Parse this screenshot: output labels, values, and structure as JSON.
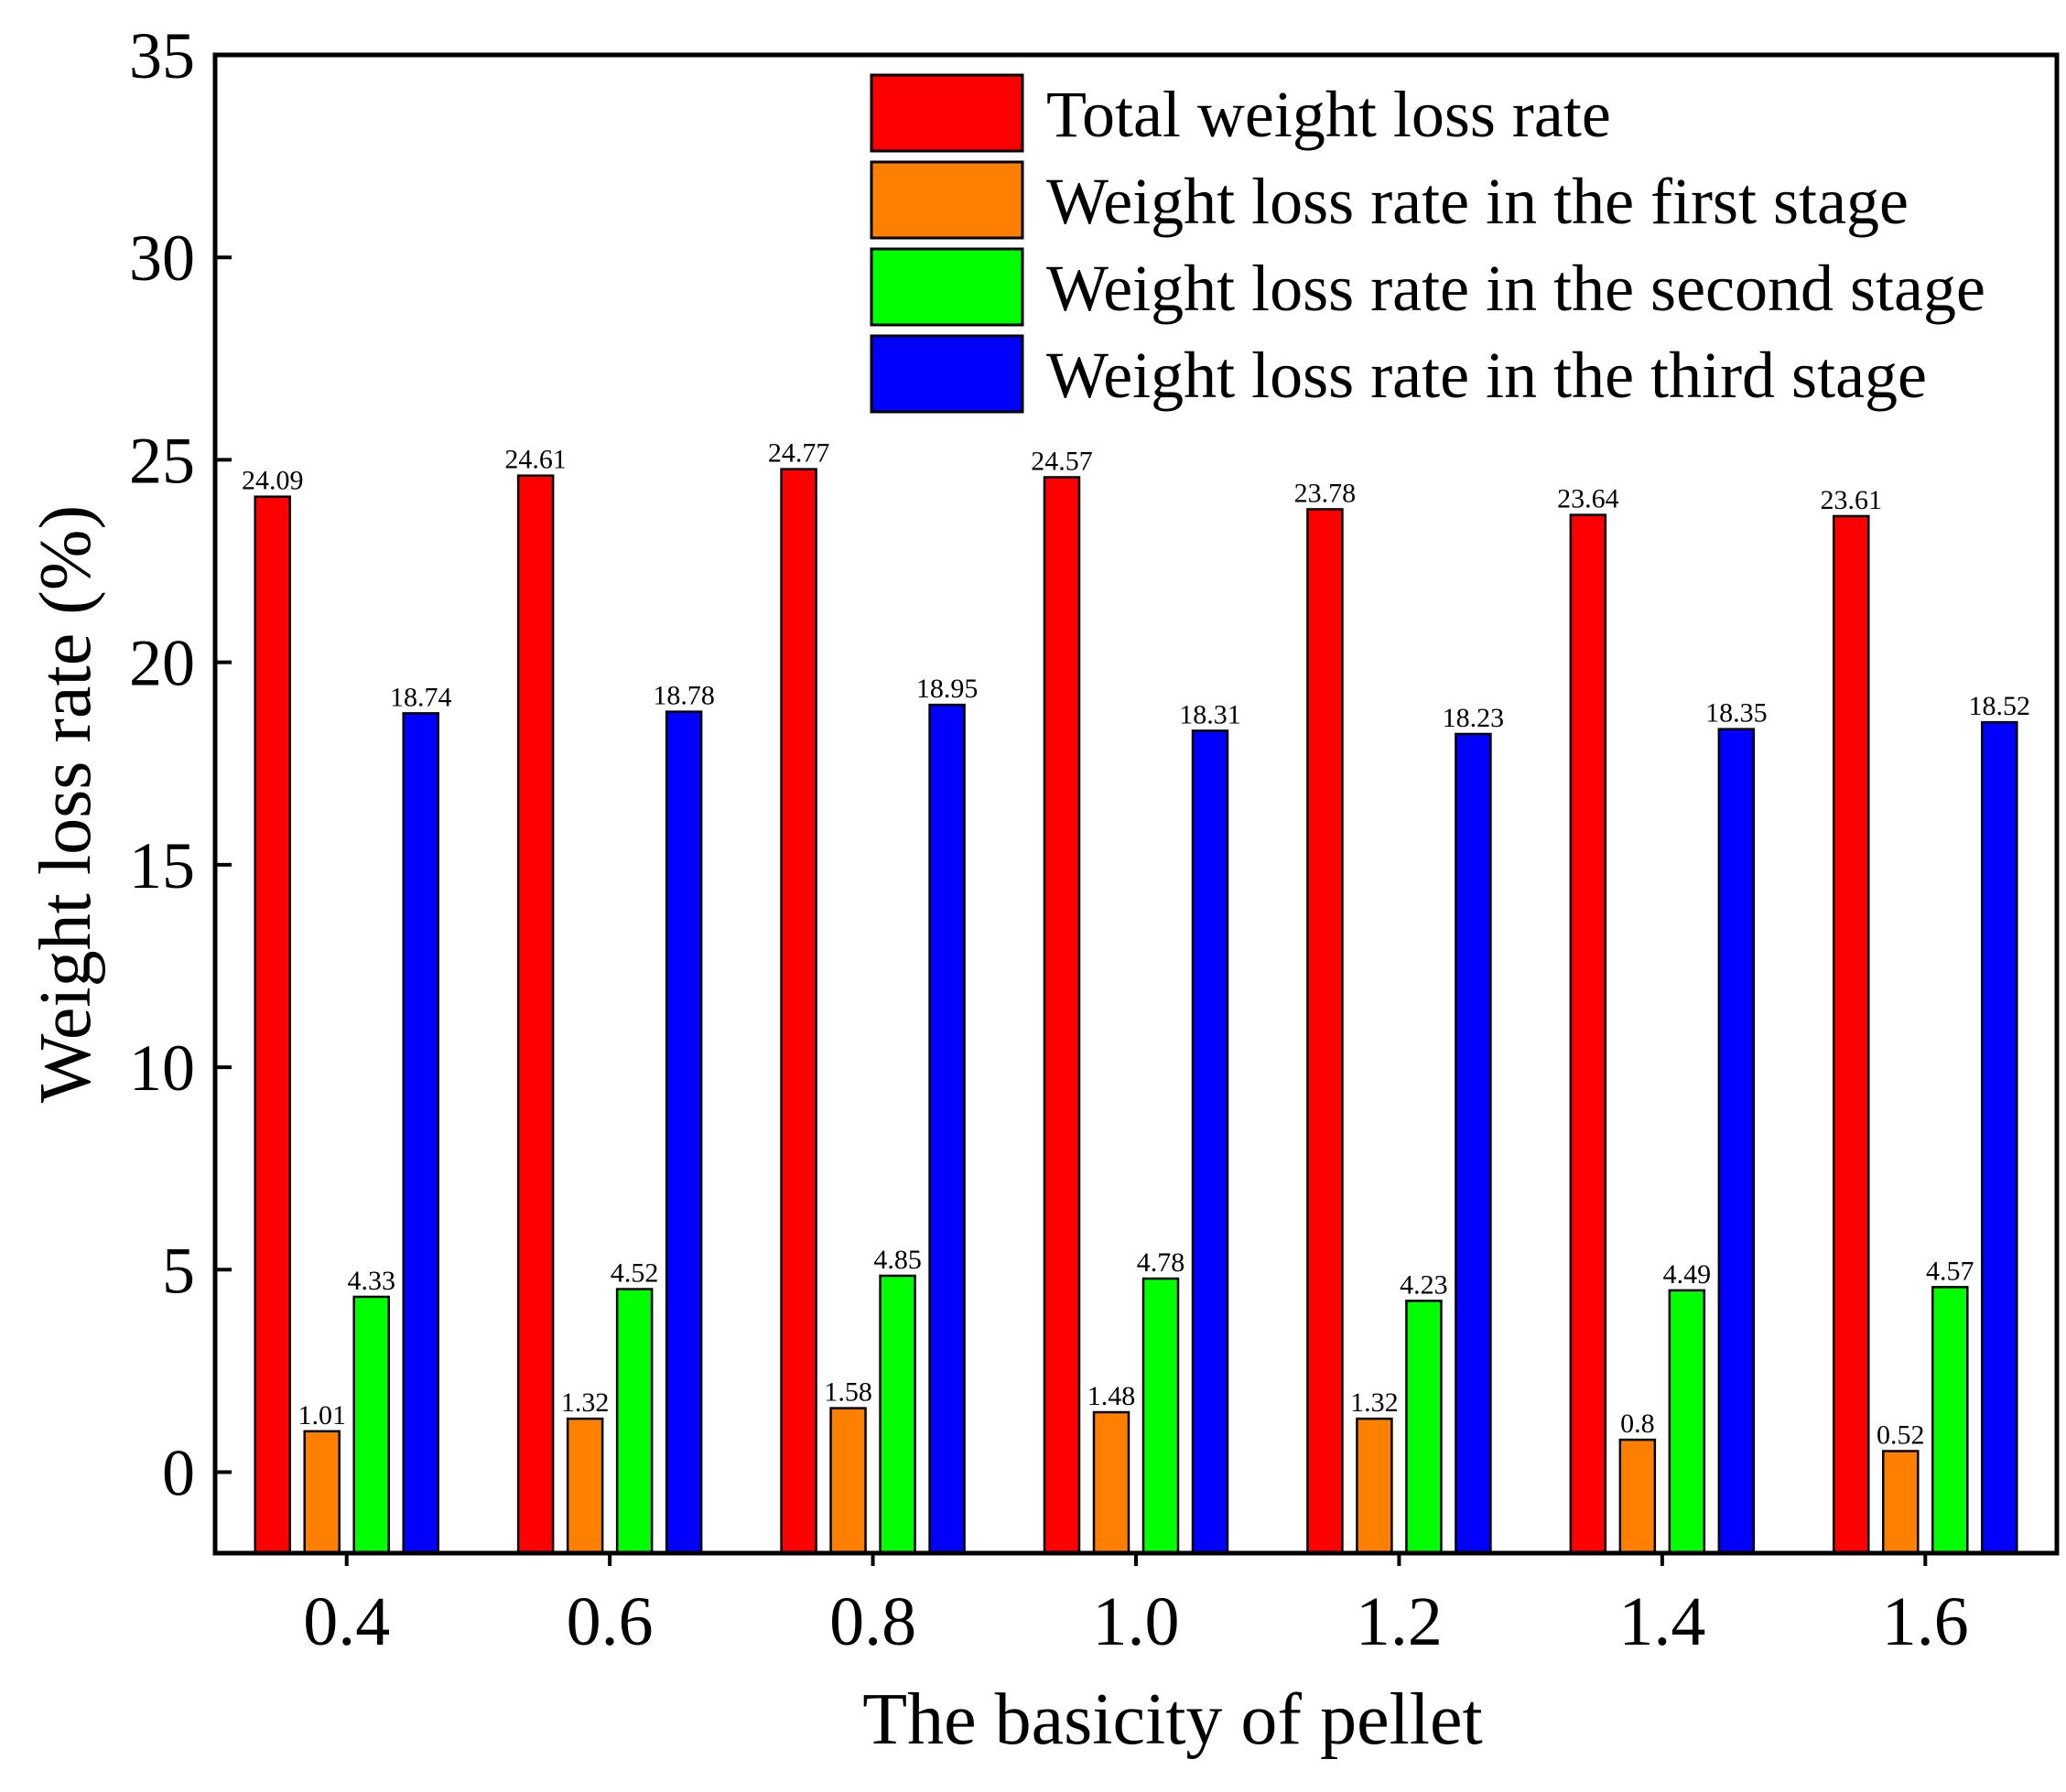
{
  "chart_data": {
    "type": "bar",
    "title": "",
    "xlabel": "The basicity of pellet",
    "ylabel": "Weight loss rate (%)",
    "categories": [
      "0.4",
      "0.6",
      "0.8",
      "1.0",
      "1.2",
      "1.4",
      "1.6"
    ],
    "ylim": [
      -2,
      35
    ],
    "yticks": [
      0,
      5,
      10,
      15,
      20,
      25,
      30,
      35
    ],
    "grid": false,
    "legend_position": "top-right",
    "series": [
      {
        "name": "Total weight loss rate",
        "color": "#ff0000",
        "values": [
          24.09,
          24.61,
          24.77,
          24.57,
          23.78,
          23.64,
          23.61
        ],
        "labels": [
          "24.09",
          "24.61",
          "24.77",
          "24.57",
          "23.78",
          "23.64",
          "23.61"
        ]
      },
      {
        "name": "Weight loss rate in the first stage",
        "color": "#ff8000",
        "values": [
          1.01,
          1.32,
          1.58,
          1.48,
          1.32,
          0.8,
          0.52
        ],
        "labels": [
          "1.01",
          "1.32",
          "1.58",
          "1.48",
          "1.32",
          "0.8",
          "0.52"
        ]
      },
      {
        "name": "Weight loss rate in the second stage",
        "color": "#00ff00",
        "values": [
          4.33,
          4.52,
          4.85,
          4.78,
          4.23,
          4.49,
          4.57
        ],
        "labels": [
          "4.33",
          "4.52",
          "4.85",
          "4.78",
          "4.23",
          "4.49",
          "4.57"
        ]
      },
      {
        "name": "Weight loss rate in the third stage",
        "color": "#0000ff",
        "values": [
          18.74,
          18.78,
          18.95,
          18.31,
          18.23,
          18.35,
          18.52
        ],
        "labels": [
          "18.74",
          "18.78",
          "18.95",
          "18.31",
          "18.23",
          "18.35",
          "18.52"
        ]
      }
    ]
  }
}
